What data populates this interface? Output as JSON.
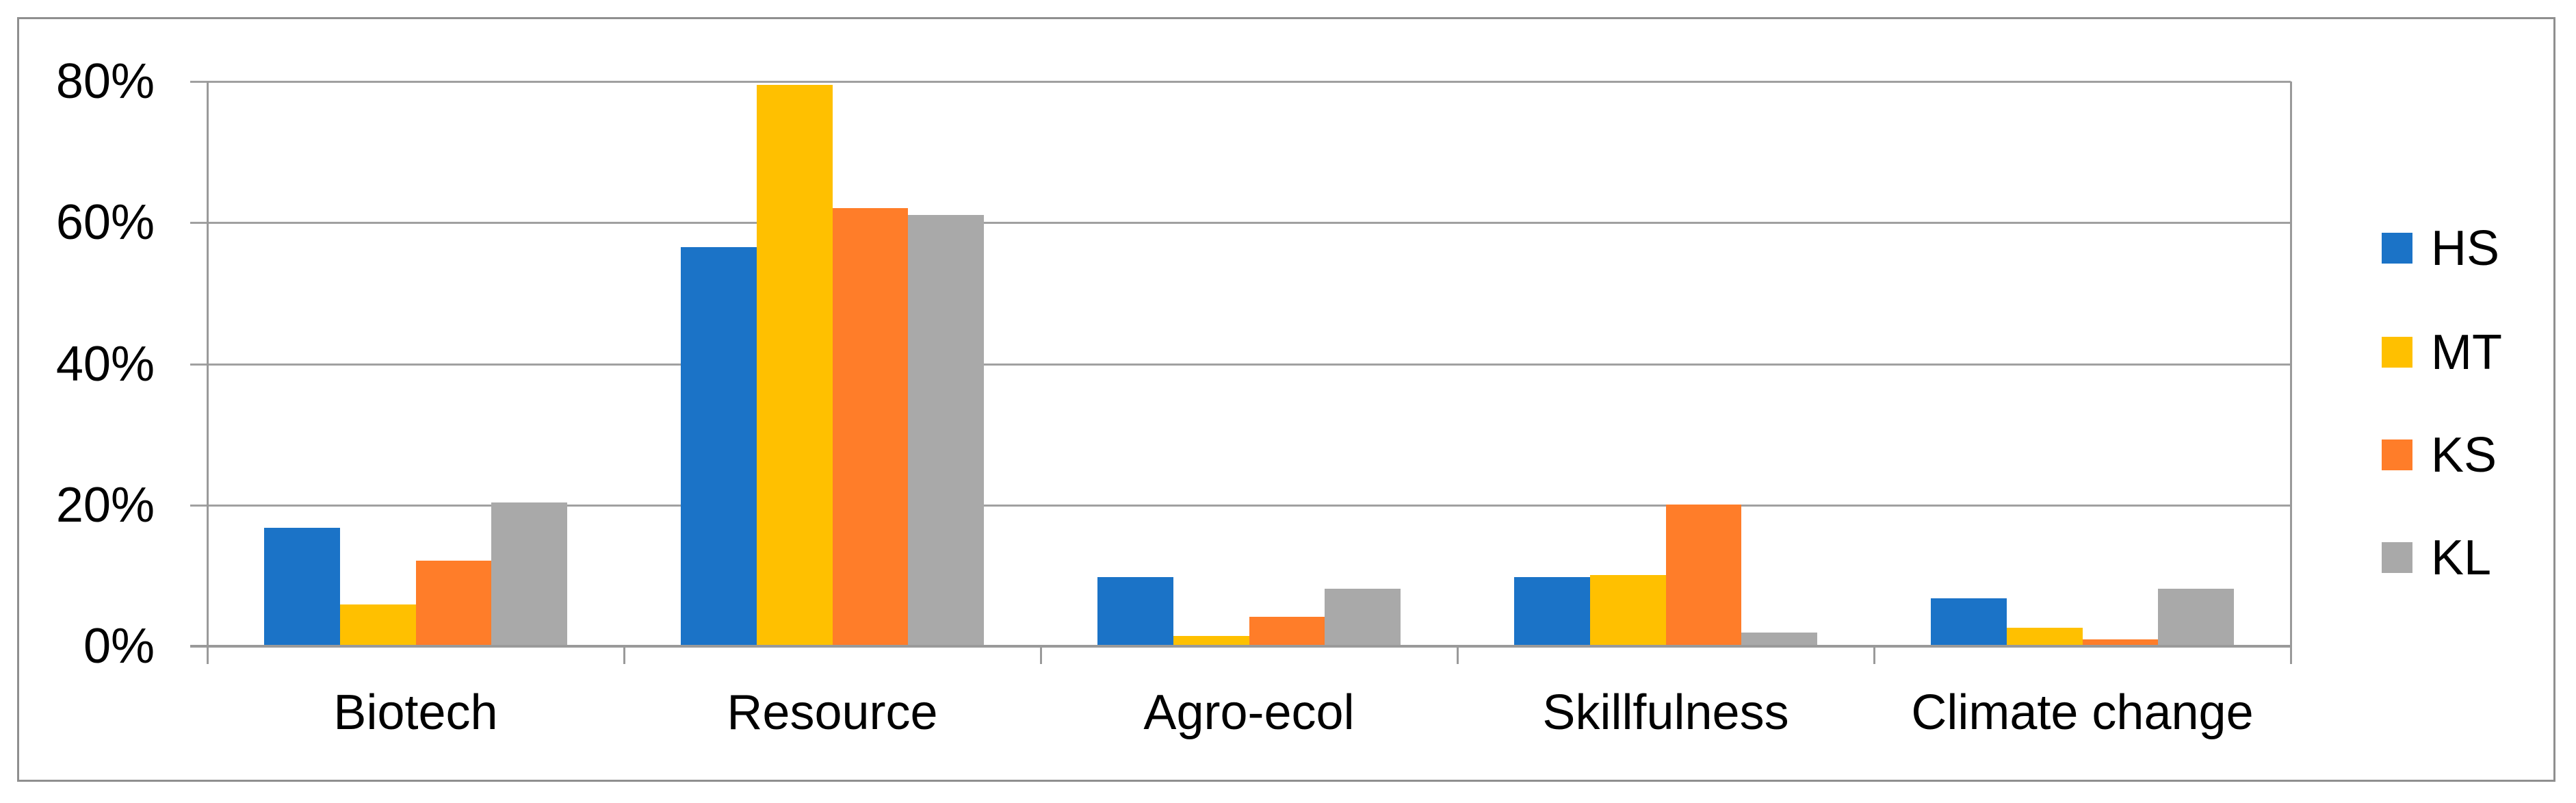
{
  "chart_data": {
    "type": "bar",
    "title": "",
    "xlabel": "",
    "ylabel": "",
    "categories": [
      "Biotech",
      "Resource",
      "Agro-ecol",
      "Skillfulness",
      "Climate change"
    ],
    "series": [
      {
        "name": "HS",
        "color": "#1B73C7",
        "values": [
          16.8,
          56.5,
          9.8,
          9.8,
          6.8
        ]
      },
      {
        "name": "MT",
        "color": "#FFC000",
        "values": [
          5.9,
          79.5,
          1.5,
          10.1,
          2.6
        ]
      },
      {
        "name": "KS",
        "color": "#FF7D29",
        "values": [
          12.1,
          62.1,
          4.2,
          20.1,
          1.0
        ]
      },
      {
        "name": "KL",
        "color": "#A9A9A9",
        "values": [
          20.4,
          61.1,
          8.1,
          1.9,
          8.1
        ]
      }
    ],
    "y_axis": {
      "min": 0,
      "max": 80,
      "step": 20,
      "tick_labels": [
        "0%",
        "20%",
        "40%",
        "60%",
        "80%"
      ],
      "format": "percent"
    },
    "grid": "horizontal",
    "legend_position": "right",
    "legend_entries": [
      "HS",
      "MT",
      "KS",
      "KL"
    ],
    "colors": {
      "gridline": "#A0A0A0",
      "axis_line": "#9A9A9A",
      "figure_border": "#8F8F8F",
      "text": "#000000",
      "background": "#FFFFFF"
    }
  }
}
